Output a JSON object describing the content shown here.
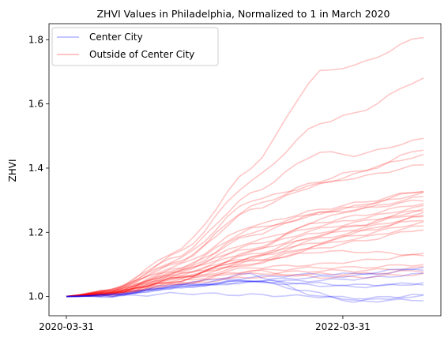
{
  "chart_data": {
    "type": "line",
    "title": "ZHVI Values in Philadelphia, Normalized to 1 in March 2020",
    "xlabel": "",
    "ylabel": "ZHVI",
    "x_start": "2020-03-31",
    "x_end": "2022-10-31",
    "ylim": [
      0.94,
      1.85
    ],
    "x_ticks": [
      "2020-03-31",
      "2022-03-31"
    ],
    "y_ticks": [
      1.0,
      1.2,
      1.4,
      1.6,
      1.8
    ],
    "y_tick_labels": [
      "1.0",
      "1.2",
      "1.4",
      "1.6",
      "1.8"
    ],
    "grid": false,
    "legend_position": "top-left",
    "legend": [
      {
        "label": "Center City",
        "color": "#0000ff"
      },
      {
        "label": "Outside of Center City",
        "color": "#ff0000"
      }
    ],
    "series_group_center": {
      "name": "Center City",
      "color": "#0000ff",
      "anchors": [
        0,
        4,
        10,
        16,
        22,
        25,
        31
      ],
      "lines": [
        [
          1.0,
          1.005,
          1.03,
          1.05,
          1.06,
          1.065,
          1.085
        ],
        [
          1.0,
          1.005,
          1.035,
          1.06,
          1.07,
          1.07,
          1.09
        ],
        [
          1.0,
          1.005,
          1.03,
          1.045,
          1.05,
          1.055,
          1.07
        ],
        [
          1.0,
          1.005,
          1.035,
          1.05,
          1.04,
          1.035,
          1.04
        ],
        [
          1.0,
          1.002,
          1.03,
          1.045,
          1.035,
          1.03,
          1.04
        ],
        [
          1.0,
          1.003,
          1.04,
          1.07,
          1.0,
          0.985,
          1.005
        ],
        [
          1.0,
          1.003,
          1.03,
          1.05,
          1.01,
          0.985,
          0.99
        ],
        [
          1.0,
          1.0,
          1.01,
          1.005,
          1.0,
          0.995,
          1.0
        ]
      ]
    },
    "series_group_outside": {
      "name": "Outside of Center City",
      "color": "#ff0000",
      "anchors": [
        0,
        4,
        10,
        16,
        22,
        25,
        31
      ],
      "lines": [
        [
          1.0,
          1.02,
          1.15,
          1.4,
          1.7,
          1.72,
          1.81
        ],
        [
          1.0,
          1.02,
          1.14,
          1.36,
          1.54,
          1.57,
          1.68
        ],
        [
          1.0,
          1.02,
          1.13,
          1.32,
          1.45,
          1.44,
          1.49
        ],
        [
          1.0,
          1.02,
          1.12,
          1.3,
          1.35,
          1.38,
          1.46
        ],
        [
          1.0,
          1.02,
          1.11,
          1.28,
          1.36,
          1.39,
          1.44
        ],
        [
          1.0,
          1.02,
          1.11,
          1.27,
          1.35,
          1.37,
          1.41
        ],
        [
          1.0,
          1.02,
          1.1,
          1.22,
          1.27,
          1.29,
          1.33
        ],
        [
          1.0,
          1.015,
          1.09,
          1.21,
          1.26,
          1.28,
          1.32
        ],
        [
          1.0,
          1.015,
          1.09,
          1.19,
          1.26,
          1.27,
          1.3
        ],
        [
          1.0,
          1.015,
          1.08,
          1.17,
          1.23,
          1.25,
          1.29
        ],
        [
          1.0,
          1.015,
          1.08,
          1.16,
          1.22,
          1.24,
          1.28
        ],
        [
          1.0,
          1.015,
          1.08,
          1.15,
          1.21,
          1.23,
          1.27
        ],
        [
          1.0,
          1.015,
          1.07,
          1.14,
          1.2,
          1.22,
          1.26
        ],
        [
          1.0,
          1.01,
          1.07,
          1.13,
          1.19,
          1.21,
          1.25
        ],
        [
          1.0,
          1.01,
          1.07,
          1.12,
          1.18,
          1.2,
          1.24
        ],
        [
          1.0,
          1.01,
          1.06,
          1.12,
          1.17,
          1.19,
          1.23
        ],
        [
          1.0,
          1.01,
          1.06,
          1.11,
          1.16,
          1.18,
          1.22
        ],
        [
          1.0,
          1.01,
          1.06,
          1.1,
          1.15,
          1.17,
          1.21
        ],
        [
          1.0,
          1.01,
          1.06,
          1.11,
          1.14,
          1.14,
          1.13
        ],
        [
          1.0,
          1.01,
          1.05,
          1.09,
          1.1,
          1.11,
          1.13
        ],
        [
          1.0,
          1.01,
          1.05,
          1.08,
          1.09,
          1.09,
          1.1
        ],
        [
          1.0,
          1.01,
          1.04,
          1.07,
          1.08,
          1.08,
          1.09
        ],
        [
          1.0,
          1.005,
          1.04,
          1.06,
          1.07,
          1.07,
          1.08
        ],
        [
          1.0,
          1.005,
          1.04,
          1.08,
          1.06,
          1.06,
          1.07
        ],
        [
          1.0,
          1.005,
          1.05,
          1.14,
          1.24,
          1.27,
          1.31
        ],
        [
          1.0,
          1.01,
          1.08,
          1.2,
          1.26,
          1.28,
          1.33
        ],
        [
          1.0,
          1.01,
          1.06,
          1.12,
          1.19,
          1.22,
          1.27
        ],
        [
          1.0,
          1.01,
          1.05,
          1.1,
          1.16,
          1.2,
          1.25
        ]
      ]
    }
  }
}
